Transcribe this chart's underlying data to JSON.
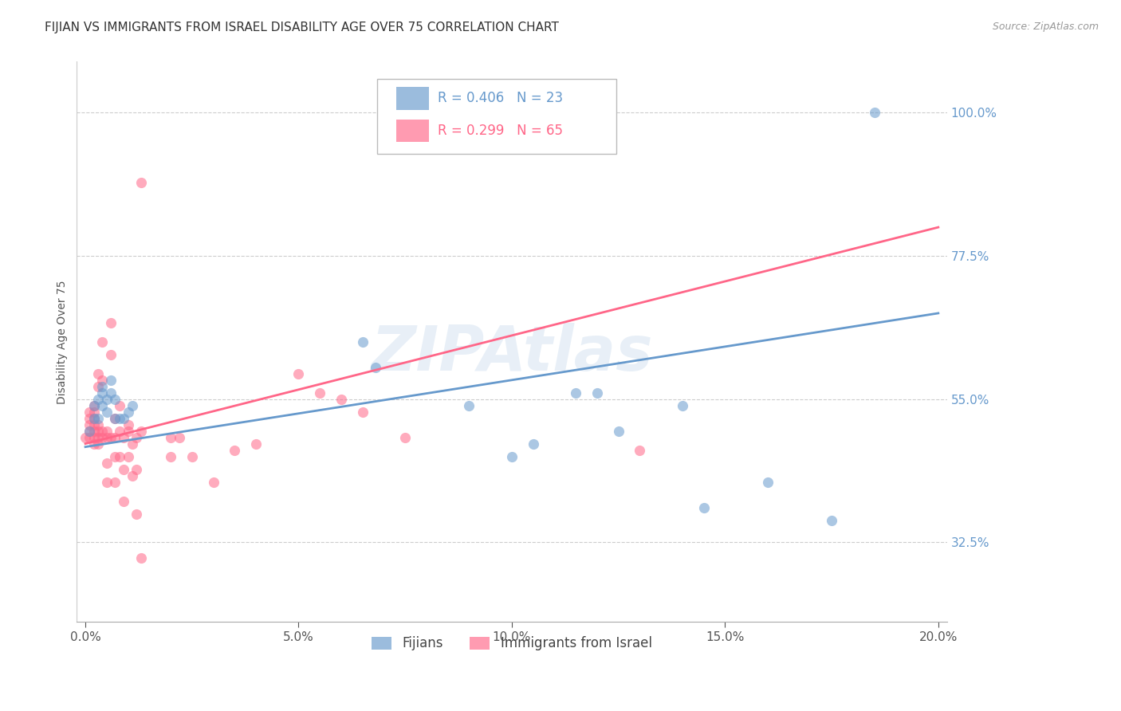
{
  "title": "FIJIAN VS IMMIGRANTS FROM ISRAEL DISABILITY AGE OVER 75 CORRELATION CHART",
  "source": "Source: ZipAtlas.com",
  "ylabel": "Disability Age Over 75",
  "legend_label_blue": "Fijians",
  "legend_label_pink": "Immigrants from Israel",
  "watermark": "ZIPAtlas",
  "blue_color": "#6699CC",
  "pink_color": "#FF6688",
  "blue_scatter": [
    [
      0.001,
      0.5
    ],
    [
      0.002,
      0.52
    ],
    [
      0.002,
      0.54
    ],
    [
      0.003,
      0.52
    ],
    [
      0.003,
      0.55
    ],
    [
      0.004,
      0.54
    ],
    [
      0.004,
      0.56
    ],
    [
      0.004,
      0.57
    ],
    [
      0.005,
      0.53
    ],
    [
      0.005,
      0.55
    ],
    [
      0.006,
      0.56
    ],
    [
      0.006,
      0.58
    ],
    [
      0.007,
      0.55
    ],
    [
      0.007,
      0.52
    ],
    [
      0.008,
      0.52
    ],
    [
      0.009,
      0.52
    ],
    [
      0.01,
      0.53
    ],
    [
      0.011,
      0.54
    ],
    [
      0.065,
      0.64
    ],
    [
      0.068,
      0.6
    ],
    [
      0.09,
      0.54
    ],
    [
      0.1,
      0.46
    ],
    [
      0.105,
      0.48
    ],
    [
      0.115,
      0.56
    ],
    [
      0.12,
      0.56
    ],
    [
      0.125,
      0.5
    ],
    [
      0.14,
      0.54
    ],
    [
      0.145,
      0.38
    ],
    [
      0.16,
      0.42
    ],
    [
      0.175,
      0.36
    ],
    [
      0.185,
      1.0
    ]
  ],
  "pink_scatter": [
    [
      0.0,
      0.49
    ],
    [
      0.001,
      0.49
    ],
    [
      0.001,
      0.5
    ],
    [
      0.001,
      0.51
    ],
    [
      0.001,
      0.52
    ],
    [
      0.001,
      0.53
    ],
    [
      0.002,
      0.48
    ],
    [
      0.002,
      0.49
    ],
    [
      0.002,
      0.5
    ],
    [
      0.002,
      0.51
    ],
    [
      0.002,
      0.52
    ],
    [
      0.002,
      0.53
    ],
    [
      0.002,
      0.54
    ],
    [
      0.003,
      0.48
    ],
    [
      0.003,
      0.49
    ],
    [
      0.003,
      0.5
    ],
    [
      0.003,
      0.51
    ],
    [
      0.003,
      0.57
    ],
    [
      0.003,
      0.59
    ],
    [
      0.004,
      0.49
    ],
    [
      0.004,
      0.5
    ],
    [
      0.004,
      0.58
    ],
    [
      0.004,
      0.64
    ],
    [
      0.005,
      0.42
    ],
    [
      0.005,
      0.45
    ],
    [
      0.005,
      0.49
    ],
    [
      0.005,
      0.5
    ],
    [
      0.006,
      0.49
    ],
    [
      0.006,
      0.62
    ],
    [
      0.006,
      0.67
    ],
    [
      0.007,
      0.42
    ],
    [
      0.007,
      0.46
    ],
    [
      0.007,
      0.49
    ],
    [
      0.007,
      0.52
    ],
    [
      0.008,
      0.46
    ],
    [
      0.008,
      0.5
    ],
    [
      0.008,
      0.54
    ],
    [
      0.009,
      0.39
    ],
    [
      0.009,
      0.44
    ],
    [
      0.009,
      0.49
    ],
    [
      0.01,
      0.46
    ],
    [
      0.01,
      0.5
    ],
    [
      0.01,
      0.51
    ],
    [
      0.011,
      0.43
    ],
    [
      0.011,
      0.48
    ],
    [
      0.012,
      0.37
    ],
    [
      0.012,
      0.44
    ],
    [
      0.012,
      0.49
    ],
    [
      0.013,
      0.3
    ],
    [
      0.013,
      0.5
    ],
    [
      0.013,
      0.89
    ],
    [
      0.02,
      0.46
    ],
    [
      0.02,
      0.49
    ],
    [
      0.022,
      0.49
    ],
    [
      0.025,
      0.46
    ],
    [
      0.03,
      0.42
    ],
    [
      0.035,
      0.47
    ],
    [
      0.04,
      0.48
    ],
    [
      0.05,
      0.59
    ],
    [
      0.055,
      0.56
    ],
    [
      0.06,
      0.55
    ],
    [
      0.065,
      0.53
    ],
    [
      0.075,
      0.49
    ],
    [
      0.13,
      0.47
    ]
  ],
  "blue_line": {
    "x0": 0.0,
    "x1": 0.2,
    "y0": 0.475,
    "y1": 0.685
  },
  "pink_line": {
    "x0": 0.0,
    "x1": 0.2,
    "y0": 0.48,
    "y1": 0.82
  },
  "xlim": [
    -0.002,
    0.202
  ],
  "ylim": [
    0.2,
    1.08
  ],
  "yticks": [
    0.325,
    0.55,
    0.775,
    1.0
  ],
  "ytick_labels": [
    "32.5%",
    "55.0%",
    "77.5%",
    "100.0%"
  ],
  "xticks": [
    0.0,
    0.05,
    0.1,
    0.15,
    0.2
  ],
  "xtick_labels": [
    "0.0%",
    "5.0%",
    "10.0%",
    "15.0%",
    "20.0%"
  ],
  "bg_color": "#FFFFFF",
  "grid_color": "#CCCCCC",
  "title_fontsize": 11,
  "axis_label_fontsize": 10,
  "tick_fontsize": 11
}
